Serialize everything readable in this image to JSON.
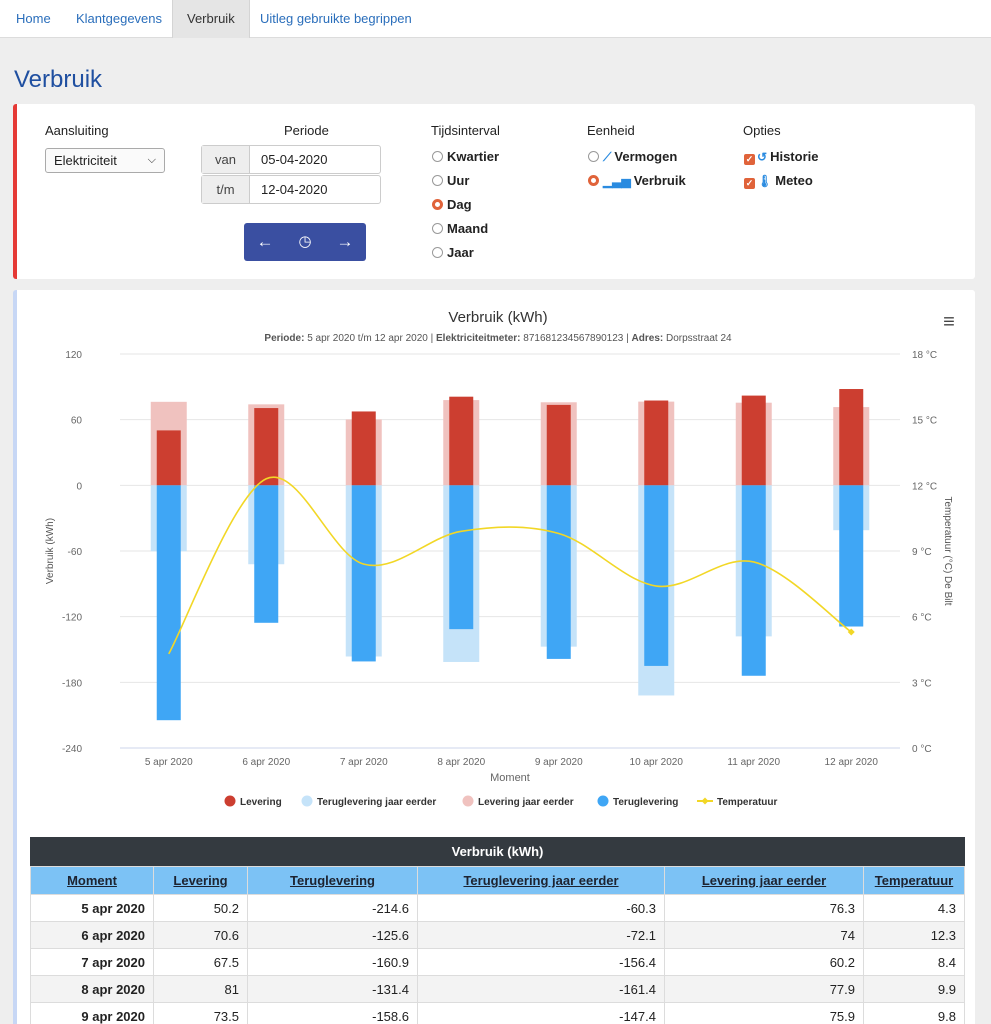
{
  "nav": {
    "tabs": [
      {
        "label": "Home"
      },
      {
        "label": "Klantgegevens"
      },
      {
        "label": "Verbruik"
      },
      {
        "label": "Uitleg gebruikte begrippen"
      }
    ]
  },
  "page_title": "Verbruik",
  "filters": {
    "aansluiting_label": "Aansluiting",
    "aansluiting_value": "Elektriciteit",
    "periode_label": "Periode",
    "van_label": "van",
    "van_value": "05-04-2020",
    "tm_label": "t/m",
    "tm_value": "12-04-2020",
    "tijdsinterval_label": "Tijdsinterval",
    "tijdsinterval_options": [
      "Kwartier",
      "Uur",
      "Dag",
      "Maand",
      "Jaar"
    ],
    "tijdsinterval_selected": "Dag",
    "eenheid_label": "Eenheid",
    "eenheid_options": [
      "Vermogen",
      "Verbruik"
    ],
    "eenheid_selected": "Verbruik",
    "opties_label": "Opties",
    "opties": [
      {
        "label": "Historie",
        "checked": true,
        "icon": "history-icon"
      },
      {
        "label": "Meteo",
        "checked": true,
        "icon": "thermometer-icon"
      }
    ],
    "nav_buttons": {
      "prev": "←",
      "reset": "◷",
      "next": "→"
    }
  },
  "chart": {
    "menu_icon": "≡",
    "subtitle_period_label": "Periode:",
    "subtitle_period_value": " 5 apr 2020 t/m 12 apr 2020 | ",
    "subtitle_meter_label": "Elektriciteitmeter:",
    "subtitle_meter_value": " 871681234567890123 | ",
    "subtitle_address_label": "Adres:",
    "subtitle_address_value": " Dorpsstraat 24"
  },
  "chart_data": {
    "type": "bar",
    "title": "Verbruik (kWh)",
    "xlabel": "Moment",
    "ylabel": "Verbruik (kWh)",
    "y2label": "Temperatuur (°C) De Bilt",
    "ylim": [
      -240,
      120
    ],
    "yticks": [
      120,
      60,
      0,
      -60,
      -120,
      -180,
      -240
    ],
    "y2lim": [
      0,
      18
    ],
    "y2ticks": [
      "18 °C",
      "15 °C",
      "12 °C",
      "9 °C",
      "6 °C",
      "3 °C",
      "0 °C"
    ],
    "categories": [
      "5 apr 2020",
      "6 apr 2020",
      "7 apr 2020",
      "8 apr 2020",
      "9 apr 2020",
      "10 apr 2020",
      "11 apr 2020",
      "12 apr 2020"
    ],
    "series": [
      {
        "name": "Levering",
        "color": "#cc3e30",
        "values": [
          50.2,
          70.6,
          67.5,
          81,
          73.5,
          77.5,
          82,
          88
        ]
      },
      {
        "name": "Teruglevering jaar eerder",
        "color": "#c5e3f9",
        "values": [
          -60.3,
          -72.1,
          -156.4,
          -161.4,
          -147.4,
          -192,
          -138,
          -41
        ]
      },
      {
        "name": "Levering jaar eerder",
        "color": "#f0c2bf",
        "values": [
          76.3,
          74,
          60.2,
          77.9,
          75.9,
          76.5,
          75.5,
          71.5
        ]
      },
      {
        "name": "Teruglevering",
        "color": "#3fa6f5",
        "values": [
          -214.6,
          -125.6,
          -160.9,
          -131.4,
          -158.6,
          -165,
          -174,
          -129
        ]
      },
      {
        "name": "Temperatuur",
        "color": "#f2d726",
        "values": [
          4.3,
          12.3,
          8.4,
          9.9,
          9.8,
          7.4,
          8.5,
          5.3
        ]
      }
    ],
    "grid": true,
    "legend_position": "bottom"
  },
  "table": {
    "caption": "Verbruik (kWh)",
    "columns": [
      "Moment",
      "Levering",
      "Teruglevering",
      "Teruglevering jaar eerder",
      "Levering jaar eerder",
      "Temperatuur"
    ],
    "rows": [
      [
        "5 apr 2020",
        "50.2",
        "-214.6",
        "-60.3",
        "76.3",
        "4.3"
      ],
      [
        "6 apr 2020",
        "70.6",
        "-125.6",
        "-72.1",
        "74",
        "12.3"
      ],
      [
        "7 apr 2020",
        "67.5",
        "-160.9",
        "-156.4",
        "60.2",
        "8.4"
      ],
      [
        "8 apr 2020",
        "81",
        "-131.4",
        "-161.4",
        "77.9",
        "9.9"
      ],
      [
        "9 apr 2020",
        "73.5",
        "-158.6",
        "-147.4",
        "75.9",
        "9.8"
      ]
    ]
  }
}
